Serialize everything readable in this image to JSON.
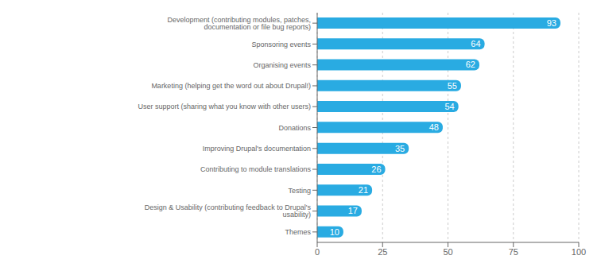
{
  "chart_data": {
    "type": "bar",
    "orientation": "horizontal",
    "categories": [
      "Development (contributing modules, patches, documentation or file bug reports)",
      "Sponsoring events",
      "Organising events",
      "Marketing (helping get the word out about Drupal!)",
      "User support (sharing what you know with other users)",
      "Donations",
      "Improving Drupal's documentation",
      "Contributing to module translations",
      "Testing",
      "Design & Usability (contributing feedback to Drupal's usability)",
      "Themes"
    ],
    "values": [
      93,
      64,
      62,
      55,
      54,
      48,
      35,
      26,
      21,
      17,
      10
    ],
    "color": "#29ABE2",
    "xlim": [
      0,
      100
    ],
    "xticks": [
      0,
      25,
      50,
      75,
      100
    ],
    "grid": true,
    "data_labels": true
  }
}
